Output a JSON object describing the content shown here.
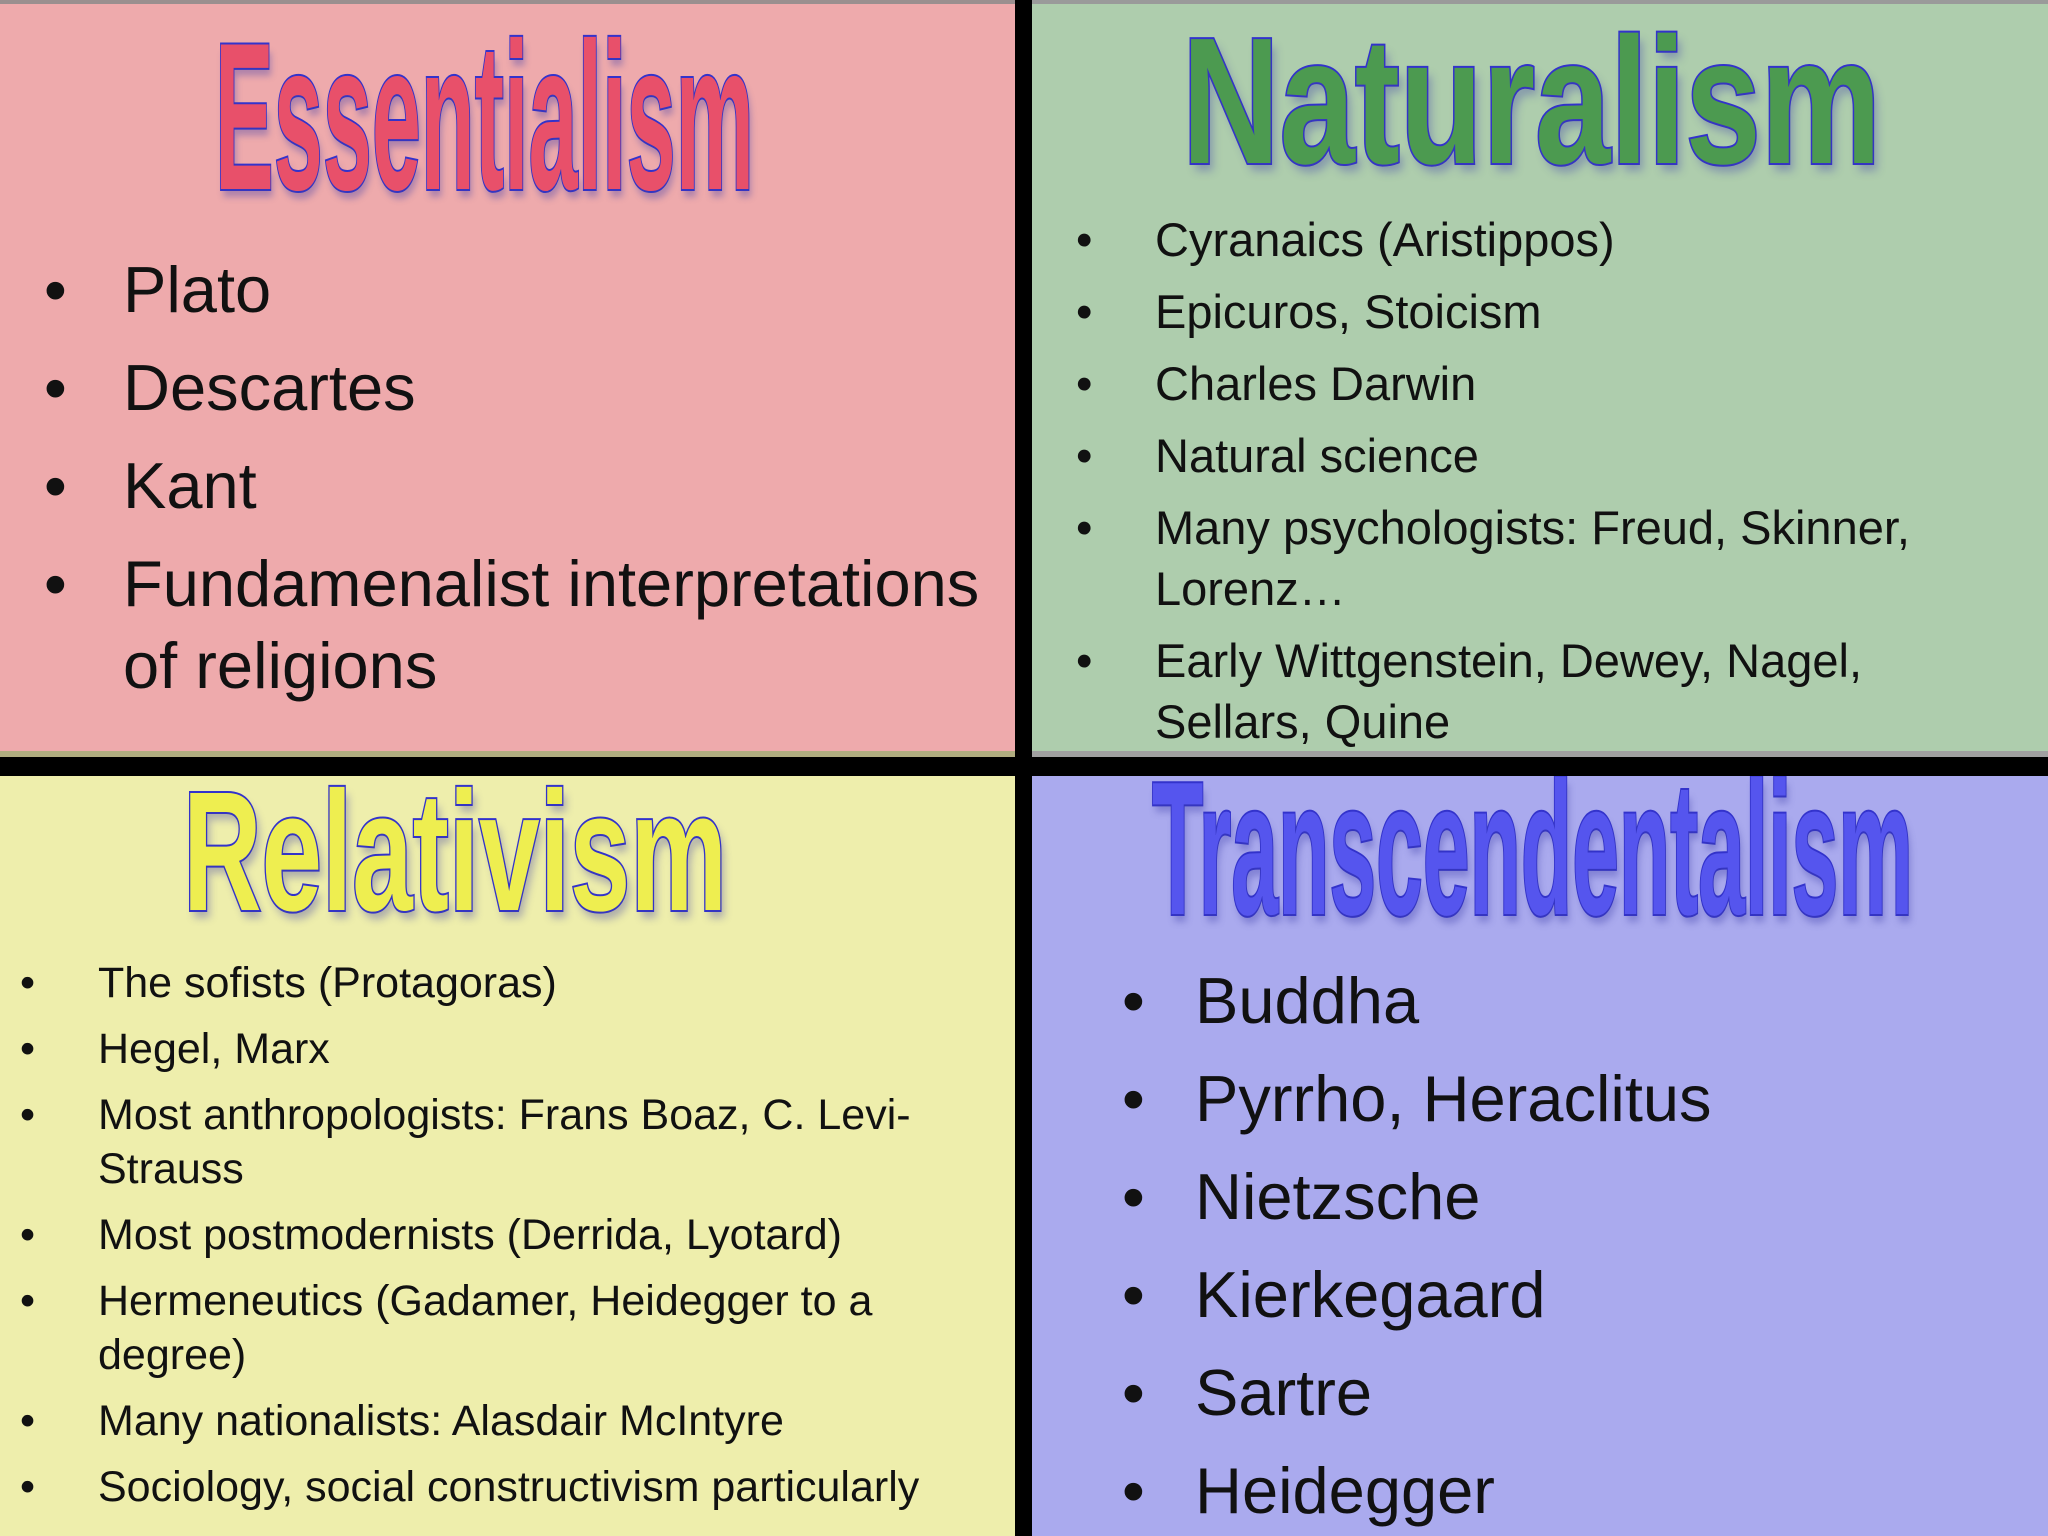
{
  "colors": {
    "essentialism_bg": "#eeaaac",
    "essentialism_title": "#e8506a",
    "naturalism_bg": "#aecdad",
    "naturalism_title": "#4c9a50",
    "relativism_bg": "#eeeeac",
    "relativism_title": "#eeee50",
    "transcendentalism_bg": "#aaaaee",
    "transcendentalism_title": "#5555ee",
    "title_outline": "#3333cc"
  },
  "bullet": "•",
  "essentialism": {
    "title": "Essentialism",
    "items": [
      "Plato",
      "Descartes",
      "Kant",
      "Fundamenalist interpretations of religions"
    ]
  },
  "naturalism": {
    "title": "Naturalism",
    "items": [
      "Cyranaics (Aristippos)",
      "Epicuros, Stoicism",
      "Charles Darwin",
      "Natural science",
      "Many psychologists: Freud, Skinner, Lorenz…",
      "Early Wittgenstein, Dewey, Nagel, Sellars, Quine"
    ]
  },
  "relativism": {
    "title": "Relativism",
    "items": [
      "The sofists (Protagoras)",
      "Hegel, Marx",
      "Most anthropologists: Frans Boaz, C. Levi-Strauss",
      "Most postmodernists (Derrida, Lyotard)",
      "Hermeneutics (Gadamer, Heidegger to a degree)",
      "Many nationalists: Alasdair McIntyre",
      "Sociology, social constructivism particularly"
    ]
  },
  "transcendentalism": {
    "title": "Transcendentalism",
    "items": [
      "Buddha",
      "Pyrrho, Heraclitus",
      "Nietzsche",
      "Kierkegaard",
      "Sartre",
      "Heidegger"
    ]
  }
}
